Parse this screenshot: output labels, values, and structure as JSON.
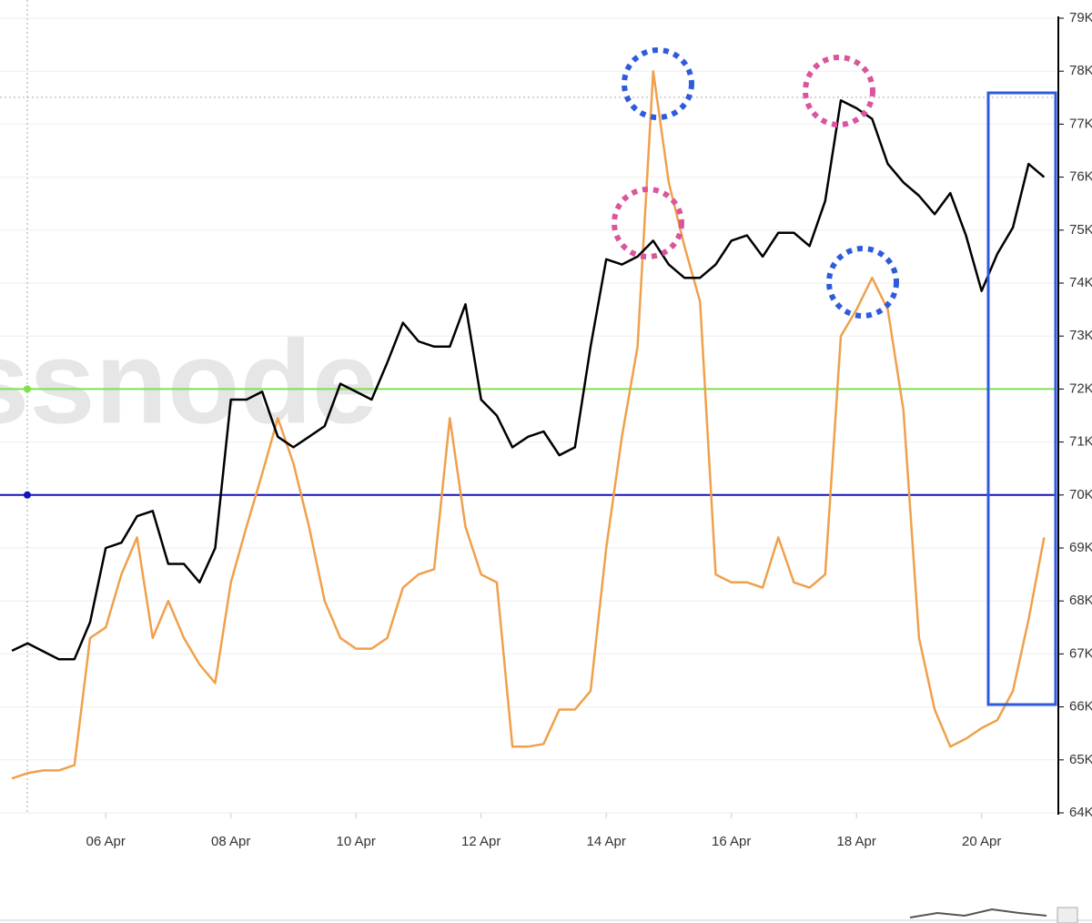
{
  "chart_data": {
    "type": "line",
    "watermark": "ssnode",
    "x": [
      4.5,
      4.75,
      5,
      5.25,
      5.5,
      5.75,
      6,
      6.25,
      6.5,
      6.75,
      7,
      7.25,
      7.5,
      7.75,
      8,
      8.25,
      8.5,
      8.75,
      9,
      9.25,
      9.5,
      9.75,
      10,
      10.25,
      10.5,
      10.75,
      11,
      11.25,
      11.5,
      11.75,
      12,
      12.25,
      12.5,
      12.75,
      13,
      13.25,
      13.5,
      13.75,
      14,
      14.25,
      14.5,
      14.75,
      15,
      15.25,
      15.5,
      15.75,
      16,
      16.25,
      16.5,
      16.75,
      17,
      17.25,
      17.5,
      17.75,
      18,
      18.25,
      18.5,
      18.75,
      19,
      19.25,
      19.5,
      19.75,
      20,
      20.25,
      20.5,
      20.75,
      21
    ],
    "series": [
      {
        "color": "#000000",
        "values": [
          67060,
          67200,
          67050,
          66900,
          66900,
          67600,
          69000,
          69100,
          69600,
          69700,
          68700,
          68700,
          68350,
          69000,
          71800,
          71800,
          71950,
          71100,
          70900,
          71100,
          71300,
          72100,
          71950,
          71800,
          72500,
          73250,
          72900,
          72800,
          72800,
          73600,
          71800,
          71500,
          70900,
          71100,
          71200,
          70750,
          70900,
          72800,
          74450,
          74350,
          74500,
          74800,
          74350,
          74100,
          74100,
          74350,
          74800,
          74900,
          74500,
          74950,
          74950,
          74700,
          75550,
          77450,
          77300,
          77100,
          76250,
          75900,
          75650,
          75300,
          75700,
          74900,
          73850,
          74550,
          75050,
          76250,
          76000
        ]
      },
      {
        "color": "#f0a04b",
        "values": [
          64650,
          64750,
          64800,
          64800,
          64900,
          67300,
          67500,
          68500,
          69200,
          67300,
          68000,
          67300,
          66800,
          66450,
          68350,
          69400,
          70400,
          71450,
          70600,
          69400,
          68000,
          67300,
          67100,
          67100,
          67300,
          68250,
          68500,
          68600,
          71450,
          69400,
          68500,
          68350,
          65250,
          65250,
          65300,
          65950,
          65950,
          66300,
          69000,
          71100,
          72800,
          78000,
          75900,
          74700,
          73650,
          68500,
          68350,
          68350,
          68250,
          69200,
          68350,
          68250,
          68500,
          73000,
          73500,
          74100,
          73500,
          71600,
          67300,
          65950,
          65250,
          65400,
          65600,
          65750,
          66300,
          67650,
          69200
        ]
      }
    ],
    "reference_lines": [
      {
        "value": 72000,
        "color": "#7ee24c"
      },
      {
        "value": 70000,
        "color": "#1414b8"
      }
    ],
    "xlim": [
      4.31,
      21.11
    ],
    "xticks": [
      {
        "value": 6,
        "label": "06 Apr"
      },
      {
        "value": 8,
        "label": "08 Apr"
      },
      {
        "value": 10,
        "label": "10 Apr"
      },
      {
        "value": 12,
        "label": "12 Apr"
      },
      {
        "value": 14,
        "label": "14 Apr"
      },
      {
        "value": 16,
        "label": "16 Apr"
      },
      {
        "value": 18,
        "label": "18 Apr"
      },
      {
        "value": 20,
        "label": "20 Apr"
      }
    ],
    "ylim": [
      64000,
      79000
    ],
    "yticks": [
      {
        "value": 64000,
        "label": "64K"
      },
      {
        "value": 65000,
        "label": "65K"
      },
      {
        "value": 66000,
        "label": "66K"
      },
      {
        "value": 67000,
        "label": "67K"
      },
      {
        "value": 68000,
        "label": "68K"
      },
      {
        "value": 69000,
        "label": "69K"
      },
      {
        "value": 70000,
        "label": "70K"
      },
      {
        "value": 71000,
        "label": "71K"
      },
      {
        "value": 72000,
        "label": "72K"
      },
      {
        "value": 73000,
        "label": "73K"
      },
      {
        "value": 74000,
        "label": "74K"
      },
      {
        "value": 75000,
        "label": "75K"
      },
      {
        "value": 76000,
        "label": "76K"
      },
      {
        "value": 77000,
        "label": "77K"
      },
      {
        "value": 78000,
        "label": "78K"
      },
      {
        "value": 79000,
        "label": "79K"
      }
    ],
    "grid": true
  }
}
